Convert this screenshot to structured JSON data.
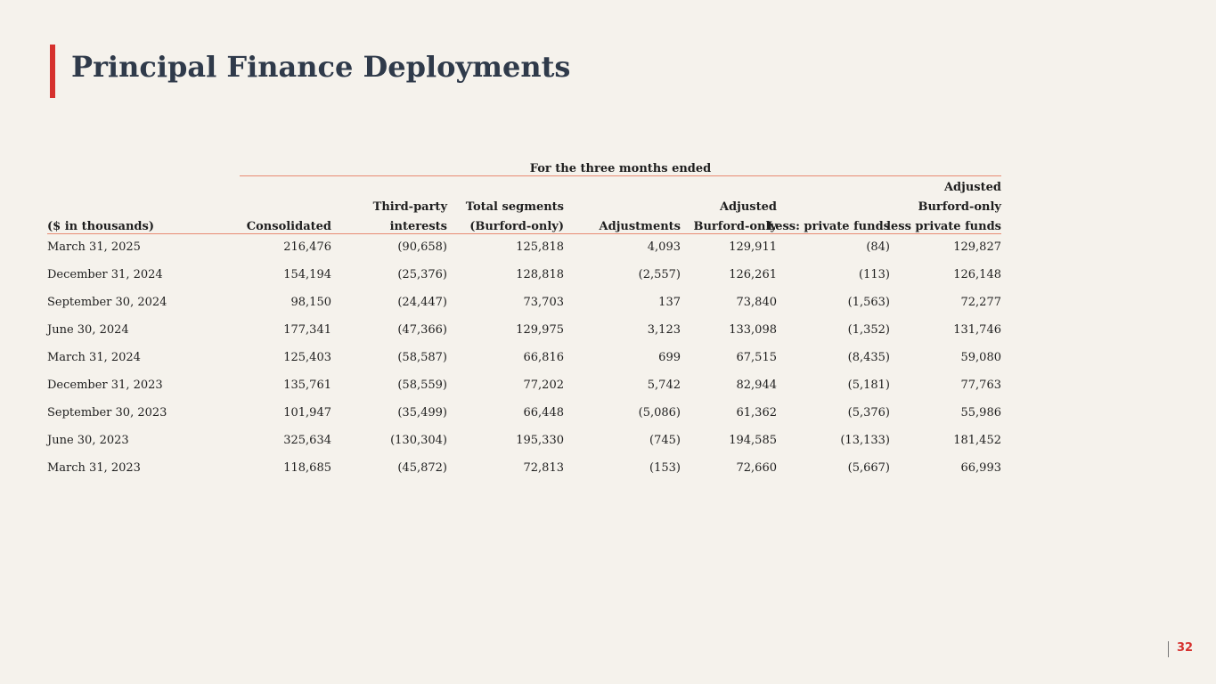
{
  "title": "Principal Finance Deployments",
  "page_number": "32",
  "table": {
    "group_header": "For the three months ended",
    "columns": [
      {
        "line1": "",
        "line2": "",
        "line3": "($ in thousands)"
      },
      {
        "line1": "",
        "line2": "",
        "line3": "Consolidated"
      },
      {
        "line1": "",
        "line2": "Third-party",
        "line3": "interests"
      },
      {
        "line1": "",
        "line2": "Total segments",
        "line3": "(Burford-only)"
      },
      {
        "line1": "",
        "line2": "",
        "line3": "Adjustments"
      },
      {
        "line1": "",
        "line2": "Adjusted",
        "line3": "Burford-only"
      },
      {
        "line1": "",
        "line2": "",
        "line3": "Less: private funds"
      },
      {
        "line1": "Adjusted",
        "line2": "Burford-only",
        "line3": "less private funds"
      }
    ],
    "rows": [
      [
        "March 31, 2025",
        "216,476",
        "(90,658)",
        "125,818",
        "4,093",
        "129,911",
        "(84)",
        "129,827"
      ],
      [
        "December 31, 2024",
        "154,194",
        "(25,376)",
        "128,818",
        "(2,557)",
        "126,261",
        "(113)",
        "126,148"
      ],
      [
        "September 30, 2024",
        "98,150",
        "(24,447)",
        "73,703",
        "137",
        "73,840",
        "(1,563)",
        "72,277"
      ],
      [
        "June 30, 2024",
        "177,341",
        "(47,366)",
        "129,975",
        "3,123",
        "133,098",
        "(1,352)",
        "131,746"
      ],
      [
        "March 31, 2024",
        "125,403",
        "(58,587)",
        "66,816",
        "699",
        "67,515",
        "(8,435)",
        "59,080"
      ],
      [
        "December 31, 2023",
        "135,761",
        "(58,559)",
        "77,202",
        "5,742",
        "82,944",
        "(5,181)",
        "77,763"
      ],
      [
        "September 30, 2023",
        "101,947",
        "(35,499)",
        "66,448",
        "(5,086)",
        "61,362",
        "(5,376)",
        "55,986"
      ],
      [
        "June 30, 2023",
        "325,634",
        "(130,304)",
        "195,330",
        "(745)",
        "194,585",
        "(13,133)",
        "181,452"
      ],
      [
        "March 31, 2023",
        "118,685",
        "(45,872)",
        "72,813",
        "(153)",
        "72,660",
        "(5,667)",
        "66,993"
      ]
    ]
  }
}
